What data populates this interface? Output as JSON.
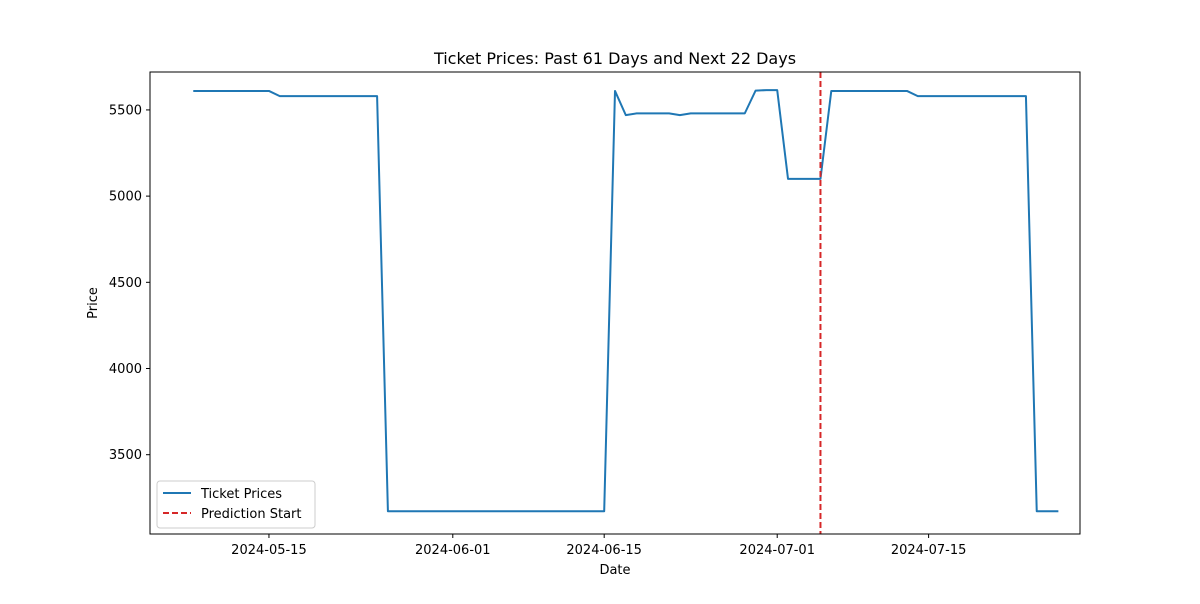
{
  "chart_data": {
    "type": "line",
    "title": "Ticket Prices: Past 61 Days and Next 22 Days",
    "xlabel": "Date",
    "ylabel": "Price",
    "x_range": [
      "2024-05-04",
      "2024-07-29"
    ],
    "ylim": [
      3040,
      5720
    ],
    "x_ticks": [
      "2024-05-15",
      "2024-06-01",
      "2024-06-15",
      "2024-07-01",
      "2024-07-15"
    ],
    "y_ticks": [
      3500,
      4000,
      4500,
      5000,
      5500
    ],
    "grid": false,
    "legend": {
      "position": "lower-left",
      "entries": [
        {
          "label": "Ticket Prices",
          "style": "solid",
          "color": "#1f77b4"
        },
        {
          "label": "Prediction Start",
          "style": "dashed",
          "color": "#d62728"
        }
      ]
    },
    "series": [
      {
        "name": "Ticket Prices",
        "color": "#1f77b4",
        "points": [
          [
            "2024-05-08",
            5610
          ],
          [
            "2024-05-15",
            5610
          ],
          [
            "2024-05-16",
            5580
          ],
          [
            "2024-05-25",
            5580
          ],
          [
            "2024-05-26",
            3172
          ],
          [
            "2024-06-15",
            3172
          ],
          [
            "2024-06-16",
            5610
          ],
          [
            "2024-06-17",
            5470
          ],
          [
            "2024-06-18",
            5480
          ],
          [
            "2024-06-21",
            5480
          ],
          [
            "2024-06-22",
            5470
          ],
          [
            "2024-06-23",
            5480
          ],
          [
            "2024-06-28",
            5480
          ],
          [
            "2024-06-29",
            5612
          ],
          [
            "2024-06-30",
            5615
          ],
          [
            "2024-07-01",
            5615
          ],
          [
            "2024-07-02",
            5100
          ],
          [
            "2024-07-05",
            5100
          ],
          [
            "2024-07-06",
            5610
          ],
          [
            "2024-07-13",
            5610
          ],
          [
            "2024-07-14",
            5580
          ],
          [
            "2024-07-24",
            5580
          ],
          [
            "2024-07-25",
            3172
          ],
          [
            "2024-07-27",
            3172
          ]
        ]
      }
    ],
    "vertical_line": {
      "name": "Prediction Start",
      "x": "2024-07-05",
      "color": "#d62728",
      "style": "dashed"
    }
  }
}
